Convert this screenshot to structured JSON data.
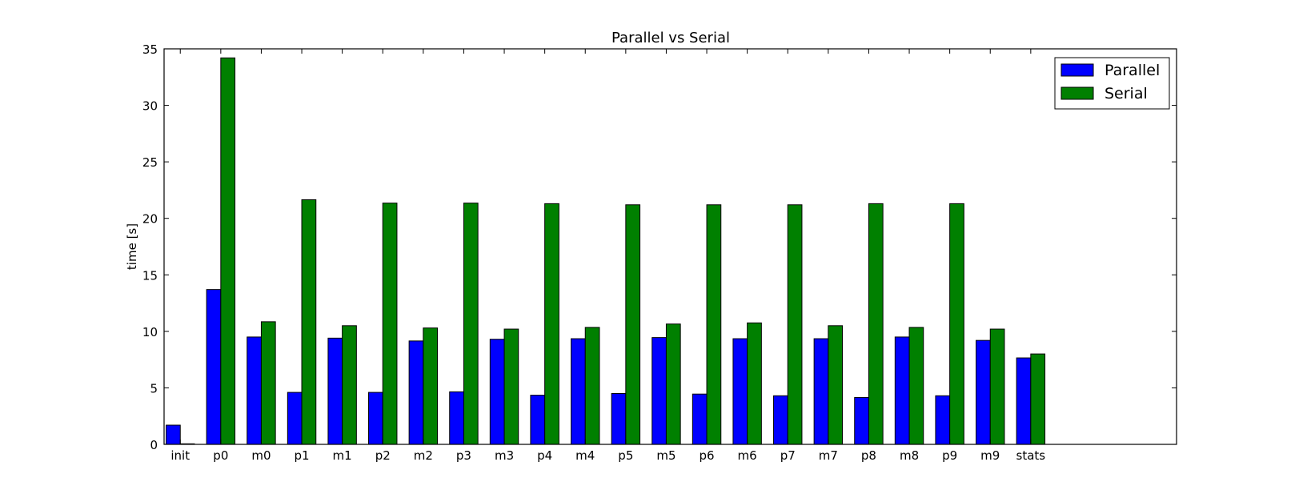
{
  "chart_data": {
    "type": "bar",
    "title": "Parallel vs Serial",
    "xlabel": "",
    "ylabel": "time [s]",
    "ylim": [
      0,
      35
    ],
    "yticks": [
      0,
      5,
      10,
      15,
      20,
      25,
      30,
      35
    ],
    "categories": [
      "init",
      "p0",
      "m0",
      "p1",
      "m1",
      "p2",
      "m2",
      "p3",
      "m3",
      "p4",
      "m4",
      "p5",
      "m5",
      "p6",
      "m6",
      "p7",
      "m7",
      "p8",
      "m8",
      "p9",
      "m9",
      "stats"
    ],
    "series": [
      {
        "name": "Parallel",
        "color": "#0000ff",
        "values": [
          1.7,
          13.7,
          9.5,
          4.6,
          9.4,
          4.6,
          9.15,
          4.65,
          9.3,
          4.35,
          9.35,
          4.5,
          9.45,
          4.45,
          9.35,
          4.3,
          9.35,
          4.15,
          9.5,
          4.3,
          9.2,
          7.65
        ]
      },
      {
        "name": "Serial",
        "color": "#008000",
        "values": [
          0.05,
          34.2,
          10.85,
          21.65,
          10.5,
          21.35,
          10.3,
          21.35,
          10.2,
          21.3,
          10.35,
          21.2,
          10.65,
          21.2,
          10.75,
          21.2,
          10.5,
          21.3,
          10.35,
          21.3,
          10.2,
          8.0
        ]
      }
    ],
    "legend": "top-right",
    "grid": false
  }
}
